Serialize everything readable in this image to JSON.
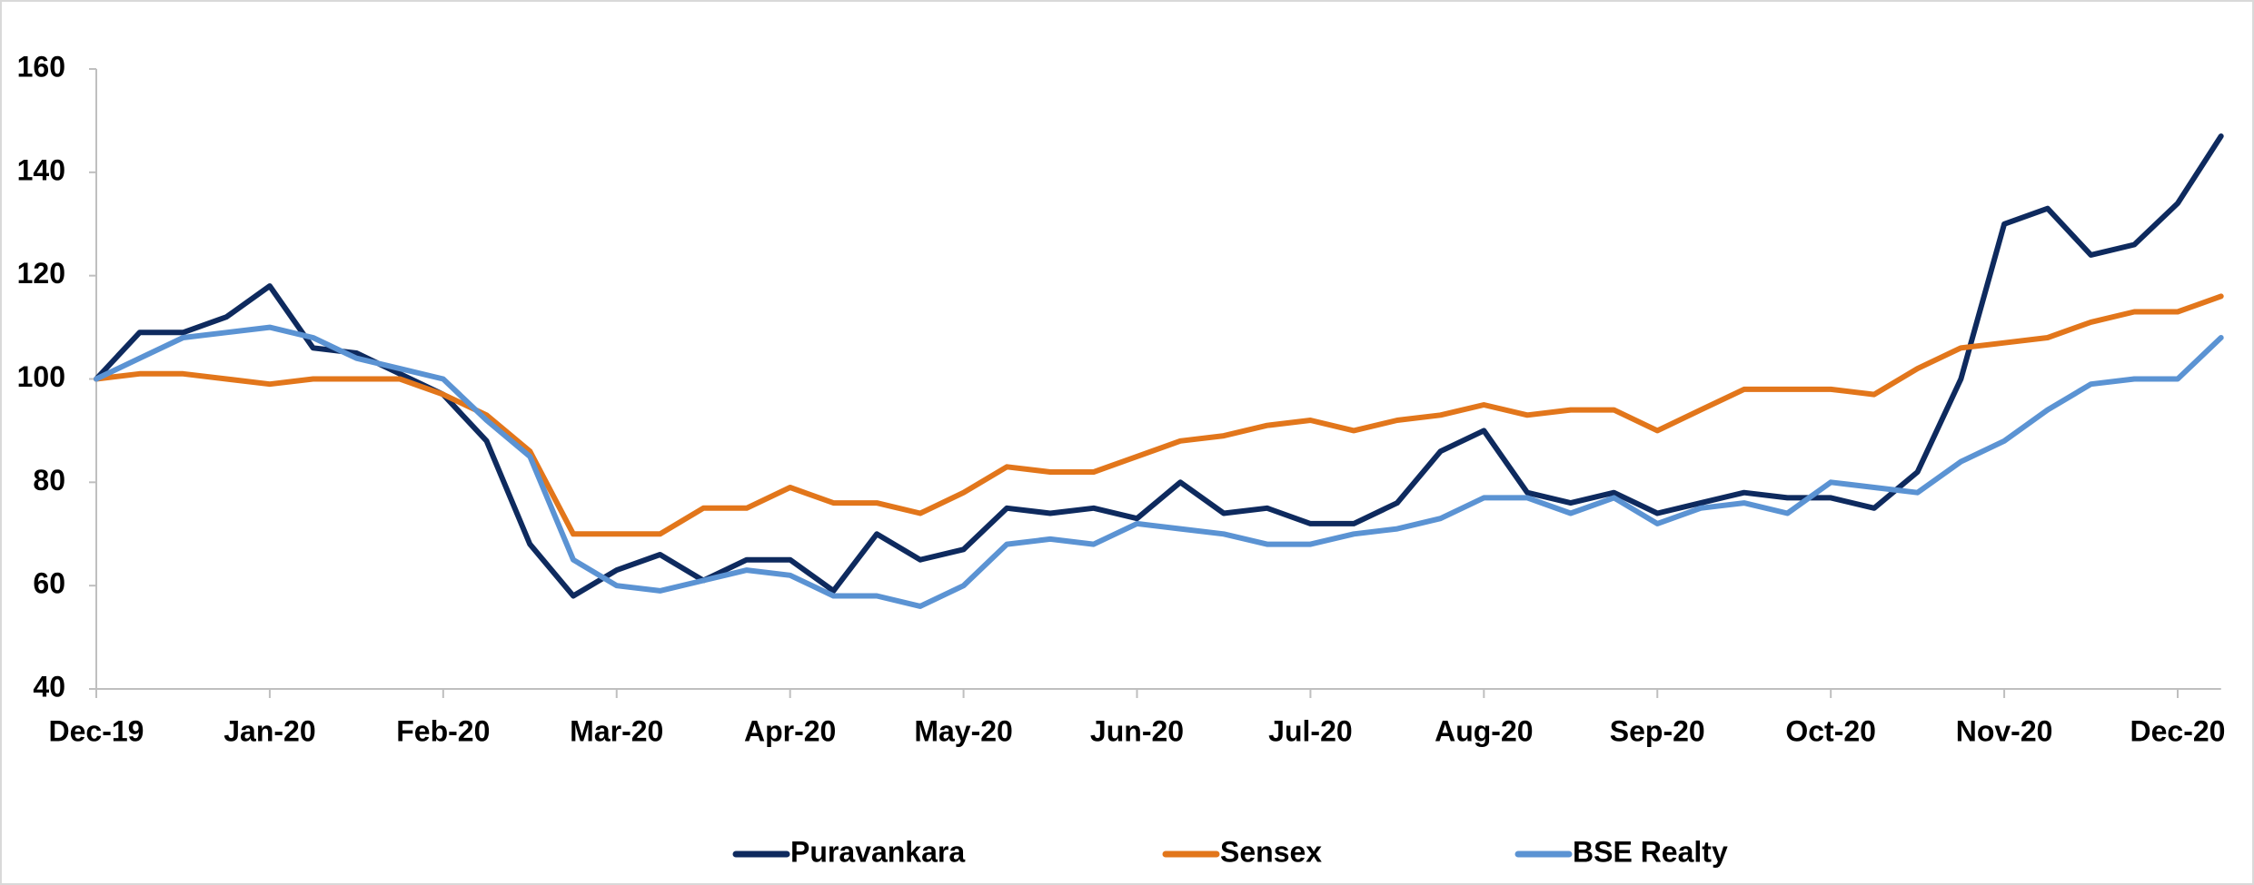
{
  "chart_data": {
    "type": "line",
    "categories": [
      "Dec-19",
      null,
      null,
      null,
      "Jan-20",
      null,
      null,
      null,
      "Feb-20",
      null,
      null,
      null,
      "Mar-20",
      null,
      null,
      null,
      "Apr-20",
      null,
      null,
      null,
      "May-20",
      null,
      null,
      null,
      "Jun-20",
      null,
      null,
      null,
      "Jul-20",
      null,
      null,
      null,
      "Aug-20",
      null,
      null,
      null,
      "Sep-20",
      null,
      null,
      null,
      "Oct-20",
      null,
      null,
      null,
      "Nov-20",
      null,
      null,
      null,
      "Dec-20",
      null
    ],
    "series": [
      {
        "name": "Puravankara",
        "color": "#0e2a5e",
        "values": [
          100,
          109,
          109,
          112,
          118,
          106,
          105,
          101,
          97,
          88,
          68,
          58,
          63,
          66,
          61,
          65,
          65,
          59,
          70,
          65,
          67,
          75,
          74,
          75,
          73,
          80,
          74,
          75,
          72,
          72,
          76,
          86,
          90,
          78,
          76,
          78,
          74,
          76,
          78,
          77,
          77,
          75,
          82,
          100,
          130,
          133,
          124,
          126,
          134,
          147
        ]
      },
      {
        "name": "Sensex",
        "color": "#e2761b",
        "values": [
          100,
          101,
          101,
          100,
          99,
          100,
          100,
          100,
          97,
          93,
          86,
          70,
          70,
          70,
          75,
          75,
          79,
          76,
          76,
          74,
          78,
          83,
          82,
          82,
          85,
          88,
          89,
          91,
          92,
          90,
          92,
          93,
          95,
          93,
          94,
          94,
          90,
          94,
          98,
          98,
          98,
          97,
          102,
          106,
          107,
          108,
          111,
          113,
          113,
          116
        ]
      },
      {
        "name": "BSE Realty",
        "color": "#5b93d3",
        "values": [
          100,
          104,
          108,
          109,
          110,
          108,
          104,
          102,
          100,
          92,
          85,
          65,
          60,
          59,
          61,
          63,
          62,
          58,
          58,
          56,
          60,
          68,
          69,
          68,
          72,
          71,
          70,
          68,
          68,
          70,
          71,
          73,
          77,
          77,
          74,
          77,
          72,
          75,
          76,
          74,
          80,
          79,
          78,
          84,
          88,
          94,
          99,
          100,
          100,
          108
        ]
      }
    ],
    "ylim": [
      40,
      160
    ],
    "yticks": [
      40,
      60,
      80,
      100,
      120,
      140,
      160
    ],
    "legend": "bottom"
  }
}
